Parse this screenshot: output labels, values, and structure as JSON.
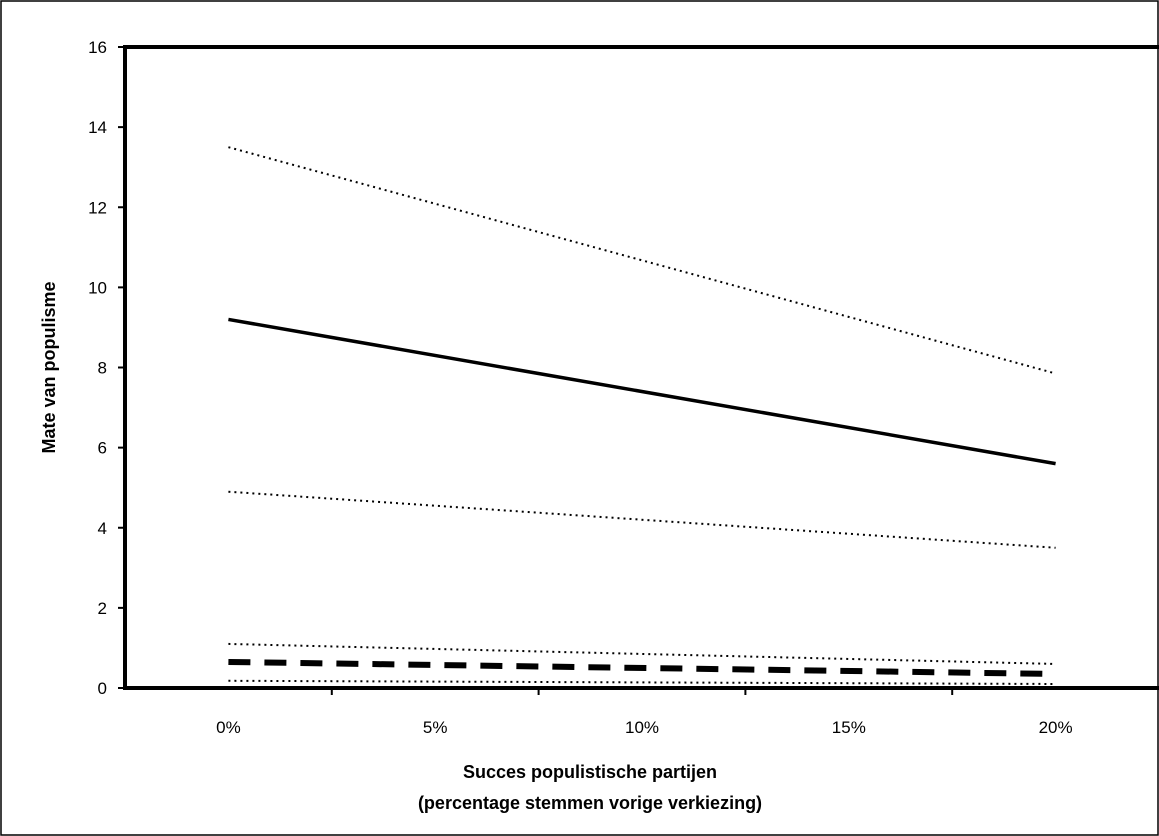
{
  "chart_data": {
    "type": "line",
    "title": "",
    "xlabel": [
      "Succes populistische partijen",
      "(percentage stemmen vorige verkiezing)"
    ],
    "ylabel": "Mate van populisme",
    "categories": [
      "0%",
      "5%",
      "10%",
      "15%",
      "20%"
    ],
    "x": [
      0,
      20
    ],
    "xlim": [
      -2.5,
      22.5
    ],
    "ylim": [
      0,
      16
    ],
    "y_ticks": [
      "0",
      "2",
      "4",
      "6",
      "8",
      "10",
      "12",
      "14",
      "16"
    ],
    "grid": false,
    "legend": "none",
    "series": [
      {
        "values": [
          9.2,
          5.6
        ],
        "style": "solid"
      },
      {
        "values": [
          13.5,
          7.85
        ],
        "style": "dotted"
      },
      {
        "values": [
          4.9,
          3.5
        ],
        "style": "dotted"
      },
      {
        "values": [
          0.65,
          0.35
        ],
        "style": "dashed"
      },
      {
        "values": [
          1.1,
          0.6
        ],
        "style": "dotted"
      },
      {
        "values": [
          0.18,
          0.1
        ],
        "style": "dotted"
      }
    ]
  }
}
